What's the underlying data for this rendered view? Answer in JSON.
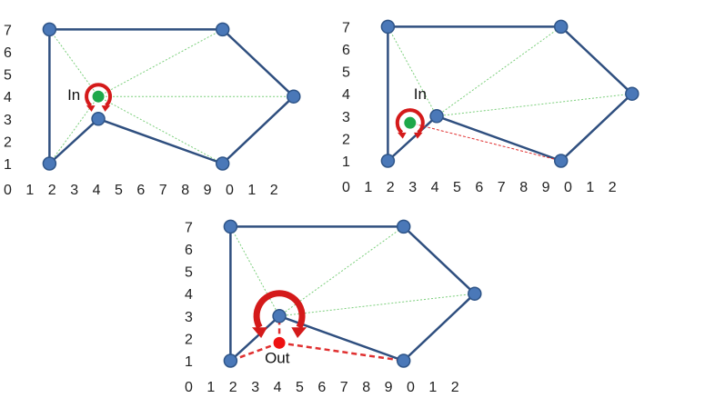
{
  "colors": {
    "edge": "#2f4f7f",
    "node_fill": "#4a78b8",
    "node_stroke": "#2f5588",
    "diagonal": "#7ccf7c",
    "query_in": "#1ea84a",
    "query_out": "#ee1111",
    "arc": "#d41a1a",
    "red_line": "#e03030"
  },
  "y_ticks": [
    "1",
    "2",
    "3",
    "4",
    "5",
    "6",
    "7"
  ],
  "x_ticks": [
    "0",
    "1",
    "2",
    "3",
    "4",
    "5",
    "6",
    "7",
    "8",
    "9",
    "0",
    "1",
    "2"
  ],
  "polygon_vertices": [
    [
      1,
      1
    ],
    [
      1,
      7
    ],
    [
      8.8,
      7
    ],
    [
      12,
      4
    ],
    [
      8.8,
      1
    ],
    [
      3.2,
      3
    ]
  ],
  "panels": [
    {
      "label": "In",
      "status": "inside",
      "query_point": [
        3.2,
        4
      ],
      "diagonals_to_vertices": [
        0,
        1,
        2,
        3,
        4
      ],
      "cross_edges": []
    },
    {
      "label": "In",
      "status": "inside",
      "query_point": [
        2,
        2.7
      ],
      "diagonals_to_vertices": [],
      "cross_edges": [
        [
          5,
          1
        ],
        [
          5,
          2
        ],
        [
          5,
          3
        ]
      ],
      "red_segments": [
        [
          [
            2,
            2.7
          ],
          [
            8.8,
            1
          ]
        ]
      ]
    },
    {
      "label": "Out",
      "status": "outside",
      "query_point": [
        3.2,
        1.8
      ],
      "diagonals_to_vertices": [],
      "cross_edges": [
        [
          5,
          1
        ],
        [
          5,
          2
        ],
        [
          5,
          3
        ]
      ],
      "red_segments": [
        [
          [
            3.2,
            1.8
          ],
          [
            1,
            1
          ]
        ],
        [
          [
            3.2,
            1.8
          ],
          [
            8.8,
            1
          ]
        ],
        [
          [
            3.2,
            1.8
          ],
          [
            3.2,
            3
          ]
        ]
      ]
    }
  ]
}
